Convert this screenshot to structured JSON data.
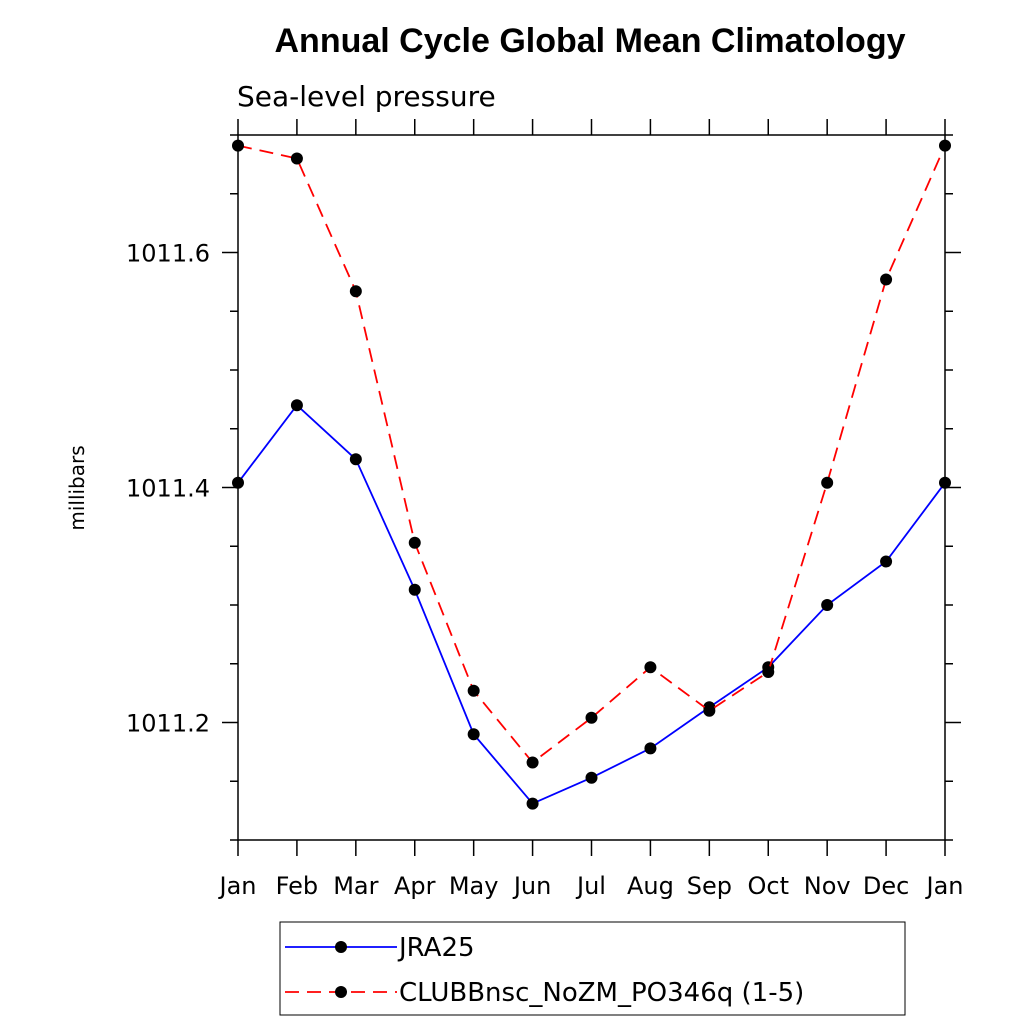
{
  "chart_data": {
    "type": "line",
    "title": "Annual Cycle Global Mean Climatology",
    "subtitle": "Sea-level pressure",
    "xlabel": "",
    "ylabel": "millibars",
    "categories": [
      "Jan",
      "Feb",
      "Mar",
      "Apr",
      "May",
      "Jun",
      "Jul",
      "Aug",
      "Sep",
      "Oct",
      "Nov",
      "Dec",
      "Jan"
    ],
    "ylim": [
      1011.1,
      1011.7
    ],
    "yticks_major": [
      1011.2,
      1011.4,
      1011.6
    ],
    "ytick_labels": [
      "1011.2",
      "1011.4",
      "1011.6"
    ],
    "series": [
      {
        "name": "JRA25",
        "color": "#0000ff",
        "style": "solid",
        "marker": "circle",
        "values": [
          1011.404,
          1011.47,
          1011.424,
          1011.313,
          1011.19,
          1011.131,
          1011.153,
          1011.178,
          1011.213,
          1011.247,
          1011.3,
          1011.337,
          1011.404
        ]
      },
      {
        "name": "CLUBBnsc_NoZM_PO346q (1-5)",
        "color": "#ff0000",
        "style": "dashed",
        "marker": "circle",
        "values": [
          1011.691,
          1011.68,
          1011.567,
          1011.353,
          1011.227,
          1011.166,
          1011.204,
          1011.247,
          1011.21,
          1011.243,
          1011.404,
          1011.577,
          1011.691
        ]
      }
    ],
    "legend_position": "bottom"
  }
}
